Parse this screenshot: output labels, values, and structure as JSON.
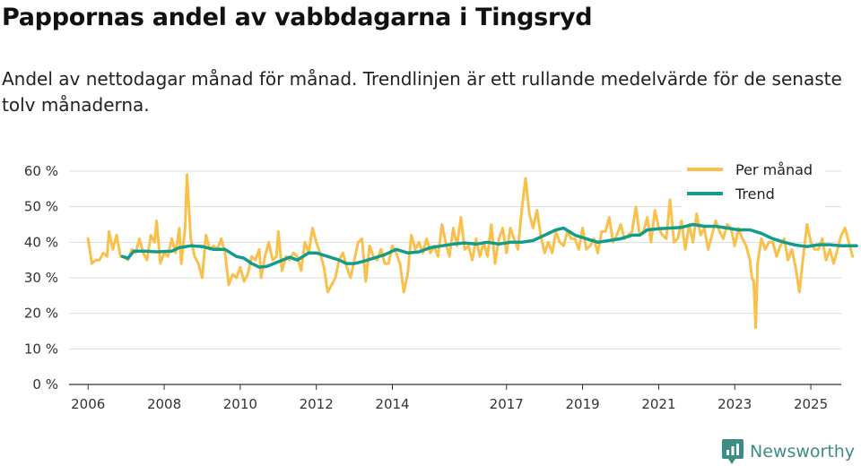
{
  "chart_data": {
    "type": "line",
    "title": "Pappornas andel av vabbdagarna i Tingsryd",
    "subtitle": "Andel av nettodagar månad för månad. Trendlinjen är ett rullande medelvärde för de senaste tolv månaderna.",
    "xlabel": "",
    "ylabel": "",
    "ylim": [
      0,
      60
    ],
    "xlim": [
      2005.5,
      2025.8
    ],
    "grid": true,
    "legend_position": "top-right",
    "y_ticks": [
      {
        "value": 0,
        "label": "0 %"
      },
      {
        "value": 10,
        "label": "10 %"
      },
      {
        "value": 20,
        "label": "20 %"
      },
      {
        "value": 30,
        "label": "30 %"
      },
      {
        "value": 40,
        "label": "40 %"
      },
      {
        "value": 50,
        "label": "50 %"
      },
      {
        "value": 60,
        "label": "60 %"
      }
    ],
    "x_ticks": [
      {
        "value": 2006,
        "label": "2006"
      },
      {
        "value": 2008,
        "label": "2008"
      },
      {
        "value": 2010,
        "label": "2010"
      },
      {
        "value": 2012,
        "label": "2012"
      },
      {
        "value": 2014,
        "label": "2014"
      },
      {
        "value": 2017,
        "label": "2017"
      },
      {
        "value": 2019,
        "label": "2019"
      },
      {
        "value": 2021,
        "label": "2021"
      },
      {
        "value": 2023,
        "label": "2023"
      },
      {
        "value": 2025,
        "label": "2025"
      }
    ],
    "series": [
      {
        "name": "Per månad",
        "color": "#f9c04b",
        "points": [
          [
            2006.0,
            41
          ],
          [
            2006.1,
            34
          ],
          [
            2006.2,
            35
          ],
          [
            2006.3,
            35
          ],
          [
            2006.4,
            37
          ],
          [
            2006.5,
            36
          ],
          [
            2006.55,
            43
          ],
          [
            2006.65,
            38
          ],
          [
            2006.75,
            42
          ],
          [
            2006.85,
            36
          ],
          [
            2006.95,
            36
          ],
          [
            2007.05,
            35
          ],
          [
            2007.15,
            38
          ],
          [
            2007.25,
            37
          ],
          [
            2007.35,
            41
          ],
          [
            2007.45,
            37
          ],
          [
            2007.55,
            35
          ],
          [
            2007.65,
            42
          ],
          [
            2007.75,
            40
          ],
          [
            2007.8,
            46
          ],
          [
            2007.9,
            34
          ],
          [
            2008.0,
            37
          ],
          [
            2008.1,
            36
          ],
          [
            2008.2,
            41
          ],
          [
            2008.3,
            37
          ],
          [
            2008.4,
            44
          ],
          [
            2008.45,
            34
          ],
          [
            2008.55,
            44
          ],
          [
            2008.6,
            59
          ],
          [
            2008.7,
            41
          ],
          [
            2008.8,
            36
          ],
          [
            2008.9,
            34
          ],
          [
            2009.0,
            30
          ],
          [
            2009.1,
            42
          ],
          [
            2009.2,
            38
          ],
          [
            2009.3,
            39
          ],
          [
            2009.4,
            38
          ],
          [
            2009.5,
            41
          ],
          [
            2009.6,
            37
          ],
          [
            2009.7,
            28
          ],
          [
            2009.8,
            31
          ],
          [
            2009.9,
            30
          ],
          [
            2010.0,
            33
          ],
          [
            2010.1,
            29
          ],
          [
            2010.2,
            31
          ],
          [
            2010.3,
            36
          ],
          [
            2010.4,
            35
          ],
          [
            2010.5,
            38
          ],
          [
            2010.55,
            30
          ],
          [
            2010.65,
            36
          ],
          [
            2010.75,
            40
          ],
          [
            2010.85,
            35
          ],
          [
            2010.95,
            36
          ],
          [
            2011.0,
            43
          ],
          [
            2011.1,
            32
          ],
          [
            2011.2,
            36
          ],
          [
            2011.3,
            35
          ],
          [
            2011.4,
            37
          ],
          [
            2011.5,
            36
          ],
          [
            2011.6,
            32
          ],
          [
            2011.7,
            40
          ],
          [
            2011.8,
            37
          ],
          [
            2011.9,
            44
          ],
          [
            2012.0,
            40
          ],
          [
            2012.1,
            37
          ],
          [
            2012.2,
            33
          ],
          [
            2012.3,
            26
          ],
          [
            2012.4,
            28
          ],
          [
            2012.5,
            30
          ],
          [
            2012.6,
            35
          ],
          [
            2012.7,
            37
          ],
          [
            2012.8,
            33
          ],
          [
            2012.9,
            30
          ],
          [
            2013.0,
            35
          ],
          [
            2013.1,
            40
          ],
          [
            2013.2,
            41
          ],
          [
            2013.3,
            29
          ],
          [
            2013.4,
            39
          ],
          [
            2013.5,
            36
          ],
          [
            2013.6,
            35
          ],
          [
            2013.7,
            38
          ],
          [
            2013.8,
            34
          ],
          [
            2013.9,
            34
          ],
          [
            2014.0,
            39
          ],
          [
            2014.1,
            37
          ],
          [
            2014.2,
            34
          ],
          [
            2014.3,
            26
          ],
          [
            2014.4,
            31
          ],
          [
            2014.5,
            42
          ],
          [
            2014.6,
            38
          ],
          [
            2014.7,
            40
          ],
          [
            2014.8,
            37
          ],
          [
            2014.9,
            41
          ],
          [
            2015.0,
            37
          ],
          [
            2015.1,
            39
          ],
          [
            2015.2,
            36
          ],
          [
            2015.3,
            45
          ],
          [
            2015.4,
            40
          ],
          [
            2015.5,
            36
          ],
          [
            2015.6,
            44
          ],
          [
            2015.7,
            39
          ],
          [
            2015.8,
            47
          ],
          [
            2015.9,
            38
          ],
          [
            2016.0,
            39
          ],
          [
            2016.1,
            35
          ],
          [
            2016.2,
            41
          ],
          [
            2016.3,
            36
          ],
          [
            2016.4,
            40
          ],
          [
            2016.5,
            36
          ],
          [
            2016.6,
            45
          ],
          [
            2016.7,
            34
          ],
          [
            2016.8,
            41
          ],
          [
            2016.9,
            44
          ],
          [
            2017.0,
            37
          ],
          [
            2017.1,
            44
          ],
          [
            2017.2,
            41
          ],
          [
            2017.3,
            38
          ],
          [
            2017.4,
            49
          ],
          [
            2017.5,
            58
          ],
          [
            2017.6,
            48
          ],
          [
            2017.7,
            44
          ],
          [
            2017.8,
            49
          ],
          [
            2017.9,
            42
          ],
          [
            2018.0,
            37
          ],
          [
            2018.1,
            40
          ],
          [
            2018.2,
            37
          ],
          [
            2018.3,
            43
          ],
          [
            2018.4,
            40
          ],
          [
            2018.5,
            39
          ],
          [
            2018.6,
            43
          ],
          [
            2018.7,
            41
          ],
          [
            2018.8,
            41
          ],
          [
            2018.9,
            38
          ],
          [
            2019.0,
            44
          ],
          [
            2019.1,
            38
          ],
          [
            2019.2,
            39
          ],
          [
            2019.3,
            41
          ],
          [
            2019.4,
            37
          ],
          [
            2019.5,
            43
          ],
          [
            2019.6,
            43
          ],
          [
            2019.7,
            47
          ],
          [
            2019.8,
            40
          ],
          [
            2019.9,
            42
          ],
          [
            2020.0,
            45
          ],
          [
            2020.1,
            41
          ],
          [
            2020.2,
            42
          ],
          [
            2020.3,
            43
          ],
          [
            2020.4,
            50
          ],
          [
            2020.5,
            42
          ],
          [
            2020.6,
            43
          ],
          [
            2020.7,
            47
          ],
          [
            2020.8,
            40
          ],
          [
            2020.9,
            49
          ],
          [
            2021.0,
            44
          ],
          [
            2021.1,
            42
          ],
          [
            2021.2,
            41
          ],
          [
            2021.3,
            52
          ],
          [
            2021.4,
            40
          ],
          [
            2021.5,
            41
          ],
          [
            2021.6,
            46
          ],
          [
            2021.7,
            38
          ],
          [
            2021.8,
            45
          ],
          [
            2021.9,
            40
          ],
          [
            2022.0,
            48
          ],
          [
            2022.1,
            42
          ],
          [
            2022.2,
            44
          ],
          [
            2022.3,
            38
          ],
          [
            2022.4,
            42
          ],
          [
            2022.5,
            46
          ],
          [
            2022.6,
            43
          ],
          [
            2022.7,
            41
          ],
          [
            2022.8,
            45
          ],
          [
            2022.9,
            44
          ],
          [
            2023.0,
            39
          ],
          [
            2023.1,
            44
          ],
          [
            2023.2,
            41
          ],
          [
            2023.3,
            39
          ],
          [
            2023.4,
            35
          ],
          [
            2023.45,
            30
          ],
          [
            2023.5,
            29
          ],
          [
            2023.55,
            16
          ],
          [
            2023.6,
            34
          ],
          [
            2023.7,
            41
          ],
          [
            2023.8,
            38
          ],
          [
            2023.9,
            40
          ],
          [
            2024.0,
            40
          ],
          [
            2024.1,
            36
          ],
          [
            2024.2,
            39
          ],
          [
            2024.3,
            41
          ],
          [
            2024.4,
            35
          ],
          [
            2024.5,
            38
          ],
          [
            2024.6,
            33
          ],
          [
            2024.7,
            26
          ],
          [
            2024.8,
            36
          ],
          [
            2024.9,
            45
          ],
          [
            2025.0,
            40
          ],
          [
            2025.1,
            38
          ],
          [
            2025.2,
            38
          ],
          [
            2025.3,
            41
          ],
          [
            2025.4,
            35
          ],
          [
            2025.5,
            38
          ],
          [
            2025.6,
            34
          ],
          [
            2025.7,
            38
          ],
          [
            2025.8,
            42
          ],
          [
            2025.9,
            44
          ],
          [
            2026.0,
            40
          ],
          [
            2026.1,
            36
          ]
        ]
      },
      {
        "name": "Trend",
        "color": "#139c8c",
        "points": [
          [
            2006.9,
            36
          ],
          [
            2007.05,
            35.5
          ],
          [
            2007.2,
            37.5
          ],
          [
            2007.5,
            37.5
          ],
          [
            2007.8,
            37.3
          ],
          [
            2008.2,
            37.5
          ],
          [
            2008.4,
            38.5
          ],
          [
            2008.7,
            39
          ],
          [
            2009.0,
            38.8
          ],
          [
            2009.3,
            38
          ],
          [
            2009.6,
            38
          ],
          [
            2009.9,
            36
          ],
          [
            2010.1,
            35.5
          ],
          [
            2010.3,
            34
          ],
          [
            2010.5,
            33
          ],
          [
            2010.7,
            33.2
          ],
          [
            2011.0,
            34.5
          ],
          [
            2011.3,
            35.8
          ],
          [
            2011.5,
            35
          ],
          [
            2011.8,
            37
          ],
          [
            2012.0,
            37
          ],
          [
            2012.3,
            36
          ],
          [
            2012.6,
            35
          ],
          [
            2012.8,
            34
          ],
          [
            2013.0,
            34
          ],
          [
            2013.2,
            34.5
          ],
          [
            2013.5,
            35.5
          ],
          [
            2013.8,
            36.5
          ],
          [
            2014.1,
            38
          ],
          [
            2014.4,
            37
          ],
          [
            2014.7,
            37.3
          ],
          [
            2015.0,
            38.5
          ],
          [
            2015.3,
            39
          ],
          [
            2015.6,
            39.5
          ],
          [
            2015.9,
            39.8
          ],
          [
            2016.2,
            39.5
          ],
          [
            2016.5,
            40
          ],
          [
            2016.8,
            39.5
          ],
          [
            2017.1,
            40
          ],
          [
            2017.4,
            40
          ],
          [
            2017.7,
            40.5
          ],
          [
            2018.0,
            42
          ],
          [
            2018.3,
            43.5
          ],
          [
            2018.5,
            44
          ],
          [
            2018.8,
            42
          ],
          [
            2019.1,
            41
          ],
          [
            2019.4,
            40
          ],
          [
            2019.7,
            40.5
          ],
          [
            2020.0,
            41
          ],
          [
            2020.3,
            42
          ],
          [
            2020.5,
            42
          ],
          [
            2020.7,
            43.5
          ],
          [
            2021.0,
            43.8
          ],
          [
            2021.3,
            44
          ],
          [
            2021.6,
            44.2
          ],
          [
            2021.9,
            45
          ],
          [
            2022.2,
            44.5
          ],
          [
            2022.5,
            44.5
          ],
          [
            2022.8,
            44
          ],
          [
            2023.1,
            43.5
          ],
          [
            2023.4,
            43.5
          ],
          [
            2023.7,
            42.5
          ],
          [
            2024.0,
            41
          ],
          [
            2024.3,
            40
          ],
          [
            2024.6,
            39.2
          ],
          [
            2024.9,
            38.8
          ],
          [
            2025.2,
            39.3
          ],
          [
            2025.5,
            39.3
          ],
          [
            2025.8,
            39
          ],
          [
            2026.0,
            39
          ],
          [
            2026.2,
            39
          ]
        ]
      }
    ]
  },
  "brand": {
    "name": "Newsworthy",
    "icon_color": "#3d8c85"
  }
}
